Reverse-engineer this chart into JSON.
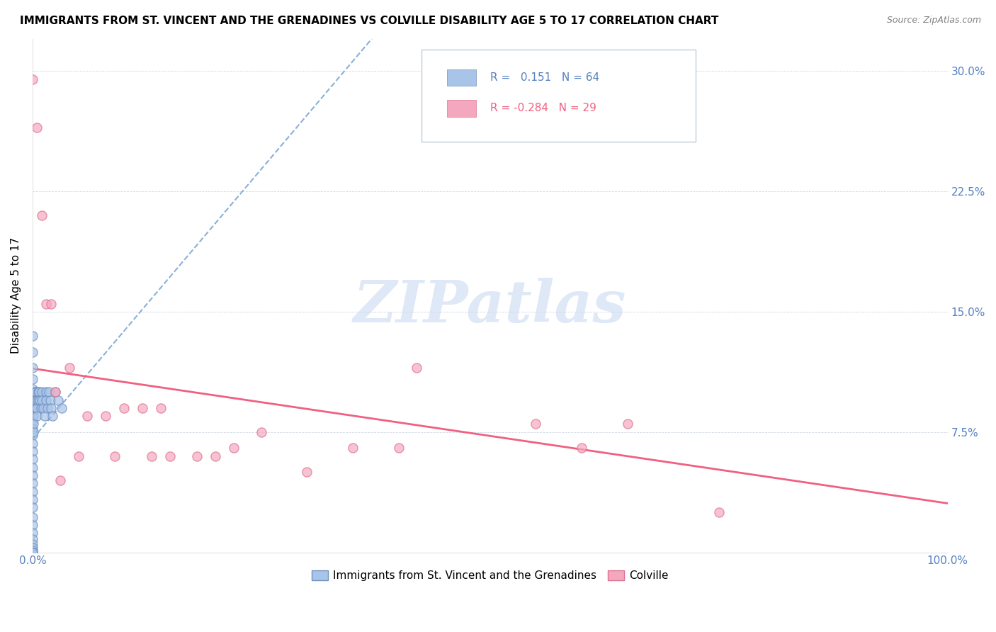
{
  "title": "IMMIGRANTS FROM ST. VINCENT AND THE GRENADINES VS COLVILLE DISABILITY AGE 5 TO 17 CORRELATION CHART",
  "source": "Source: ZipAtlas.com",
  "ylabel": "Disability Age 5 to 17",
  "blue_r": 0.151,
  "blue_n": 64,
  "pink_r": -0.284,
  "pink_n": 29,
  "blue_color": "#a8c4e8",
  "blue_edge_color": "#7090c0",
  "pink_color": "#f4a8c0",
  "pink_edge_color": "#e07090",
  "blue_line_color": "#8ab0d8",
  "pink_line_color": "#f06080",
  "tick_color": "#5580c0",
  "legend_blue_label": "Immigrants from St. Vincent and the Grenadines",
  "legend_pink_label": "Colville",
  "watermark_text": "ZIPatlas",
  "watermark_color": "#c8daf0",
  "grid_color": "#d0d8e8",
  "blue_scatter_x": [
    0.0,
    0.0,
    0.0,
    0.0,
    0.0,
    0.0,
    0.0,
    0.0,
    0.0,
    0.0,
    0.0,
    0.0,
    0.0,
    0.0,
    0.0,
    0.0,
    0.0,
    0.0,
    0.0,
    0.0,
    0.0,
    0.0,
    0.0,
    0.0,
    0.0,
    0.0,
    0.0,
    0.0,
    0.0,
    0.0,
    0.001,
    0.001,
    0.001,
    0.001,
    0.001,
    0.002,
    0.002,
    0.002,
    0.003,
    0.003,
    0.004,
    0.004,
    0.005,
    0.005,
    0.005,
    0.006,
    0.006,
    0.007,
    0.008,
    0.009,
    0.01,
    0.01,
    0.012,
    0.013,
    0.015,
    0.015,
    0.016,
    0.018,
    0.019,
    0.02,
    0.022,
    0.025,
    0.028,
    0.032
  ],
  "blue_scatter_y": [
    0.135,
    0.125,
    0.115,
    0.108,
    0.102,
    0.098,
    0.093,
    0.088,
    0.082,
    0.077,
    0.073,
    0.068,
    0.063,
    0.058,
    0.053,
    0.048,
    0.043,
    0.038,
    0.033,
    0.028,
    0.022,
    0.017,
    0.012,
    0.008,
    0.005,
    0.003,
    0.001,
    0.0,
    0.0,
    0.0,
    0.095,
    0.09,
    0.085,
    0.08,
    0.075,
    0.1,
    0.095,
    0.09,
    0.1,
    0.095,
    0.1,
    0.09,
    0.095,
    0.09,
    0.085,
    0.1,
    0.095,
    0.1,
    0.095,
    0.09,
    0.1,
    0.095,
    0.09,
    0.085,
    0.1,
    0.095,
    0.09,
    0.1,
    0.095,
    0.09,
    0.085,
    0.1,
    0.095,
    0.09
  ],
  "pink_scatter_x": [
    0.0,
    0.005,
    0.01,
    0.015,
    0.02,
    0.025,
    0.03,
    0.04,
    0.05,
    0.06,
    0.08,
    0.09,
    0.1,
    0.12,
    0.13,
    0.14,
    0.15,
    0.18,
    0.2,
    0.22,
    0.25,
    0.3,
    0.35,
    0.4,
    0.42,
    0.55,
    0.6,
    0.65,
    0.75
  ],
  "pink_scatter_y": [
    0.295,
    0.265,
    0.21,
    0.155,
    0.155,
    0.1,
    0.045,
    0.115,
    0.06,
    0.085,
    0.085,
    0.06,
    0.09,
    0.09,
    0.06,
    0.09,
    0.06,
    0.06,
    0.06,
    0.065,
    0.075,
    0.05,
    0.065,
    0.065,
    0.115,
    0.08,
    0.065,
    0.08,
    0.025
  ],
  "xlim": [
    0.0,
    1.0
  ],
  "ylim": [
    0.0,
    0.32
  ],
  "xtick_positions": [
    0.0,
    0.5,
    1.0
  ],
  "xtick_labels": [
    "0.0%",
    "",
    "100.0%"
  ],
  "ytick_positions": [
    0.0,
    0.075,
    0.15,
    0.225,
    0.3
  ],
  "ytick_labels": [
    "",
    "7.5%",
    "15.0%",
    "22.5%",
    "30.0%"
  ]
}
